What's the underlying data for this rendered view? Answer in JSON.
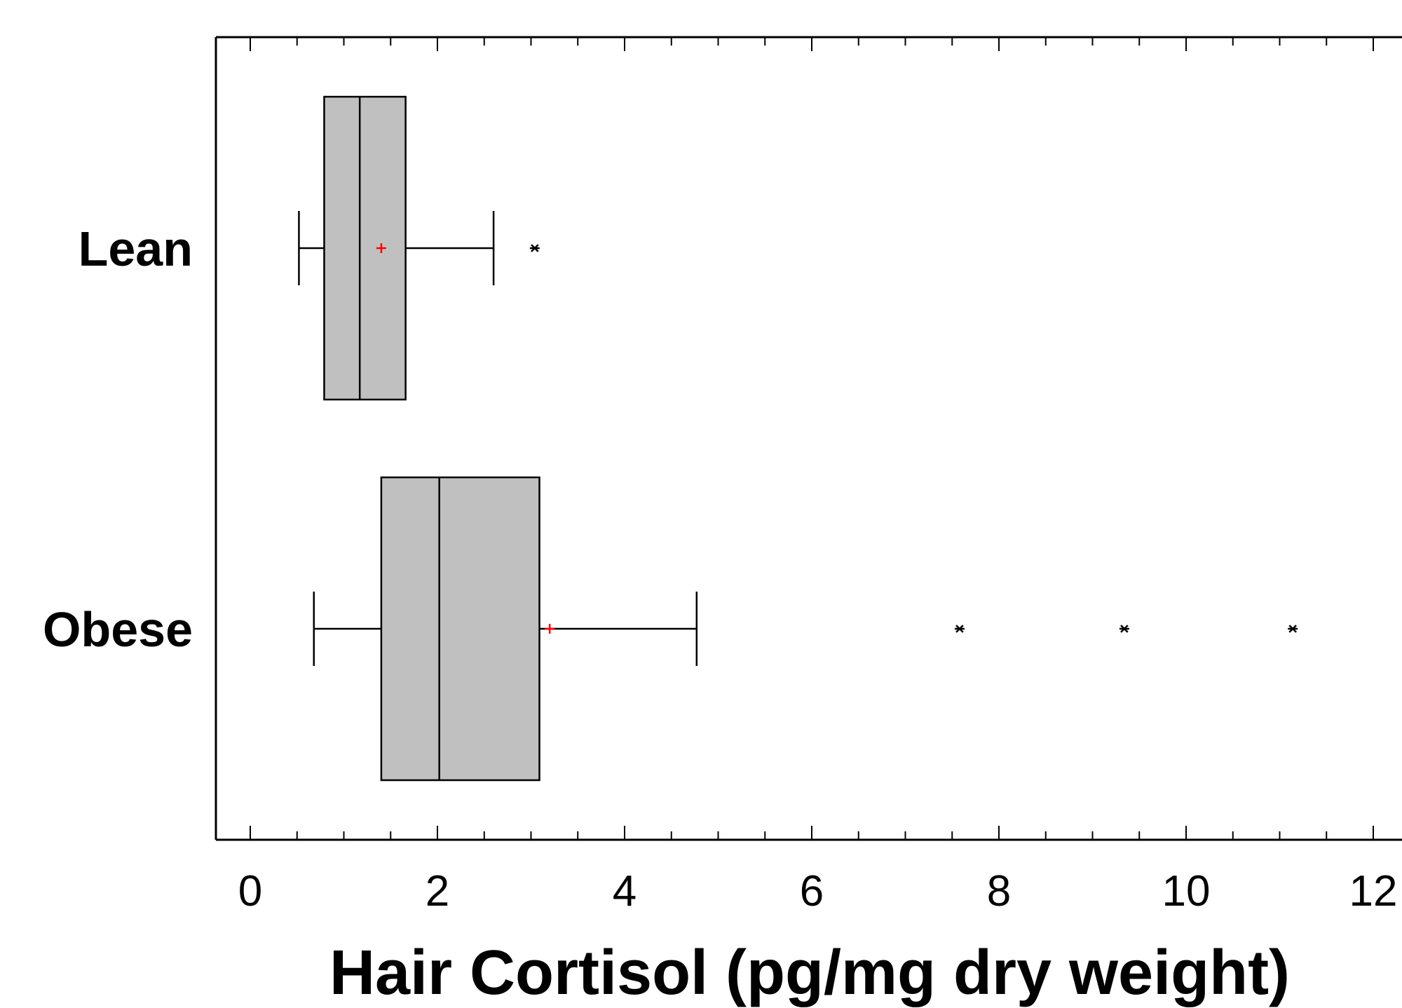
{
  "chart_data": {
    "type": "boxplot",
    "orientation": "horizontal",
    "title": "",
    "xlabel": "Hair Cortisol (pg/mg dry weight)",
    "ylabel": "",
    "xlim": [
      -0.4,
      12.4
    ],
    "xticks": [
      0,
      2,
      4,
      6,
      8,
      10,
      12
    ],
    "xtick_labels": [
      "0",
      "2",
      "4",
      "6",
      "8",
      "10",
      "12"
    ],
    "minor_tick_step": 0.5,
    "grid": false,
    "legend": "none",
    "categories": [
      "Lean",
      "Obese"
    ],
    "series": [
      {
        "whisker_low": 0.52,
        "q1": 0.79,
        "median": 1.17,
        "q3": 1.66,
        "whisker_high": 2.6,
        "mean": 1.4,
        "outliers": [
          3.04
        ]
      },
      {
        "whisker_low": 0.68,
        "q1": 1.4,
        "median": 2.02,
        "q3": 3.09,
        "whisker_high": 4.77,
        "mean": 3.2,
        "outliers": [
          7.58,
          9.34,
          11.14
        ]
      }
    ],
    "colors": {
      "box_fill": "#c0c0c0",
      "line": "#000000",
      "mean_marker": "#ff0000",
      "outlier_marker": "#000000"
    }
  }
}
